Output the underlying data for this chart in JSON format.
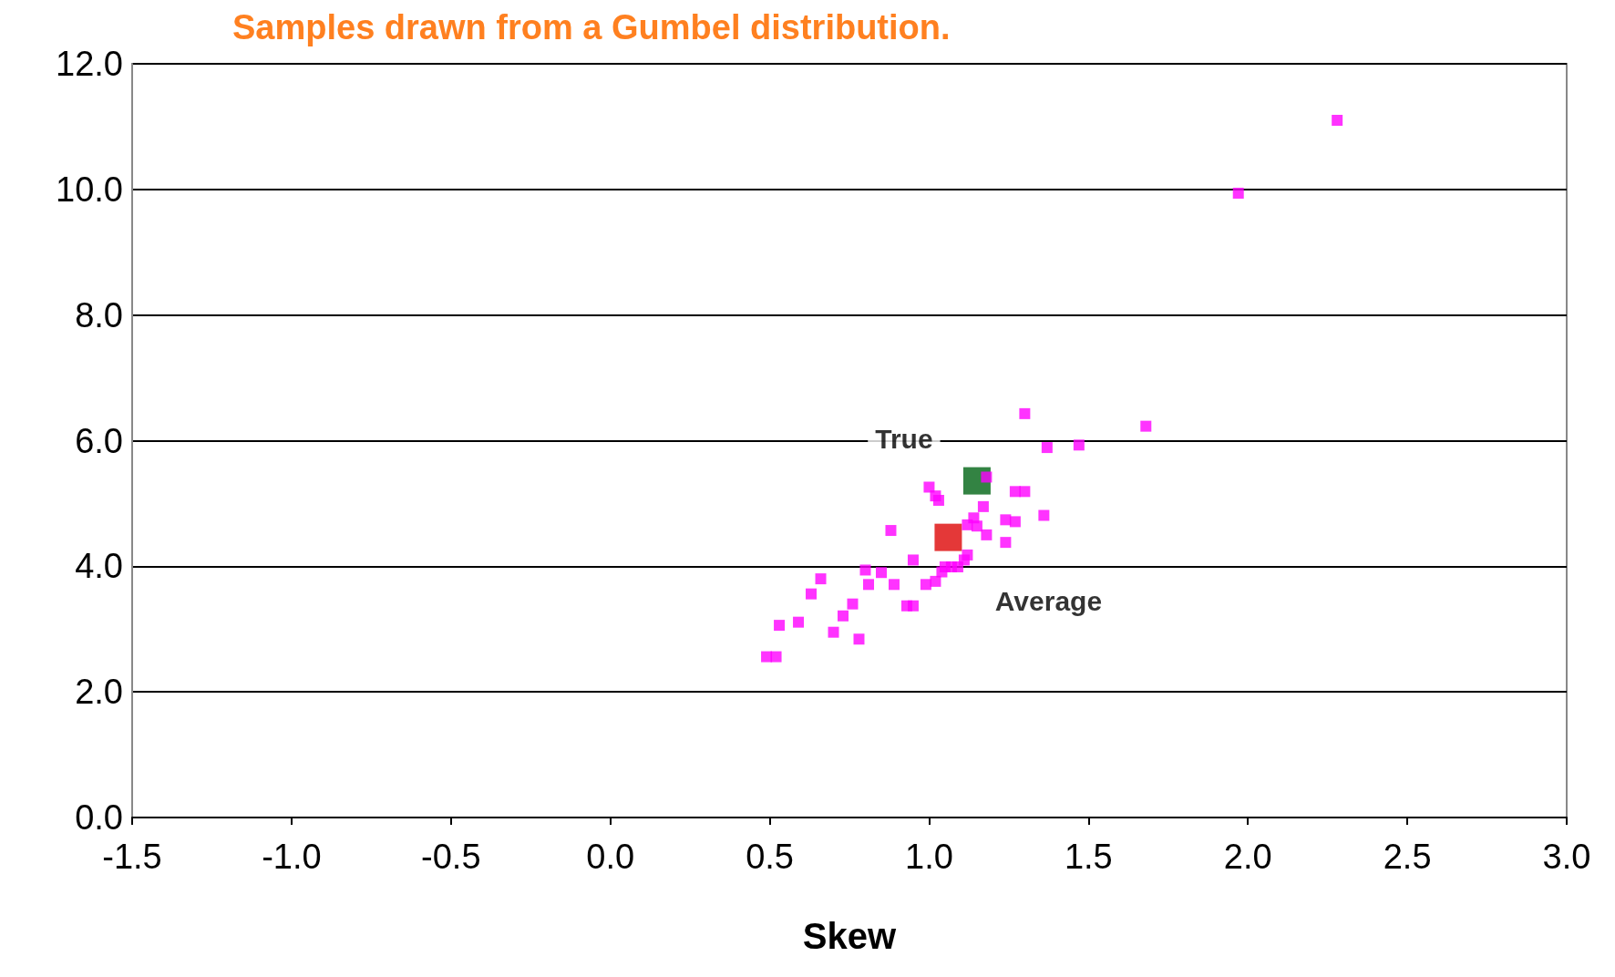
{
  "chart_data": {
    "type": "scatter",
    "title": "Samples drawn from a Gumbel distribution.",
    "xlabel": "Skew",
    "xlim": [
      -1.5,
      3.0
    ],
    "xticks": [
      {
        "value": -1.5,
        "label": "-1.5"
      },
      {
        "value": -1,
        "label": "-1.0"
      },
      {
        "value": -0.5,
        "label": "-0.5"
      },
      {
        "value": 0,
        "label": "0.0"
      },
      {
        "value": 0.5,
        "label": "0.5"
      },
      {
        "value": 1,
        "label": "1.0"
      },
      {
        "value": 1.5,
        "label": "1.5"
      },
      {
        "value": 2,
        "label": "2.0"
      },
      {
        "value": 2.5,
        "label": "2.5"
      },
      {
        "value": 3,
        "label": "3.0"
      }
    ],
    "ylim": [
      0,
      12
    ],
    "yticks": [
      {
        "value": 0,
        "label": "0.0"
      },
      {
        "value": 2,
        "label": "2.0"
      },
      {
        "value": 4,
        "label": "4.0"
      },
      {
        "value": 6,
        "label": "6.0"
      },
      {
        "value": 8,
        "label": "8.0"
      },
      {
        "value": 10,
        "label": "10.0"
      },
      {
        "value": 12,
        "label": "12.0"
      }
    ],
    "grid": "y",
    "marker": "square",
    "legend": false,
    "series": [
      {
        "color": "#ff00ff",
        "x": [
          0.49,
          0.52,
          0.53,
          0.59,
          0.63,
          0.66,
          0.7,
          0.73,
          0.76,
          0.78,
          0.8,
          0.81,
          0.85,
          0.88,
          0.89,
          0.93,
          0.95,
          0.95,
          0.99,
          1.0,
          1.02,
          1.03,
          1.02,
          1.04,
          1.05,
          1.07,
          1.09,
          1.11,
          1.12,
          1.12,
          1.14,
          1.15,
          1.17,
          1.18,
          1.18,
          1.24,
          1.24,
          1.27,
          1.27,
          1.3,
          1.3,
          1.36,
          1.37,
          1.47,
          1.68,
          1.97,
          2.28
        ],
        "values": [
          2.56,
          2.56,
          3.06,
          3.11,
          3.56,
          3.8,
          2.95,
          3.21,
          3.4,
          2.84,
          3.94,
          3.71,
          3.9,
          4.57,
          3.71,
          3.37,
          3.37,
          4.1,
          3.71,
          5.26,
          5.12,
          5.05,
          3.76,
          3.91,
          3.99,
          3.99,
          3.99,
          4.1,
          4.18,
          4.66,
          4.77,
          4.64,
          4.95,
          5.42,
          4.5,
          4.38,
          4.74,
          4.71,
          5.19,
          5.19,
          6.43,
          4.81,
          5.89,
          5.93,
          6.23,
          9.94,
          11.1
        ]
      },
      {
        "name": "True",
        "color": "#006414",
        "x": [
          1.15
        ],
        "values": [
          5.36
        ]
      },
      {
        "name": "Average",
        "color": "#dd0606",
        "x": [
          1.06
        ],
        "values": [
          4.46
        ]
      }
    ]
  }
}
